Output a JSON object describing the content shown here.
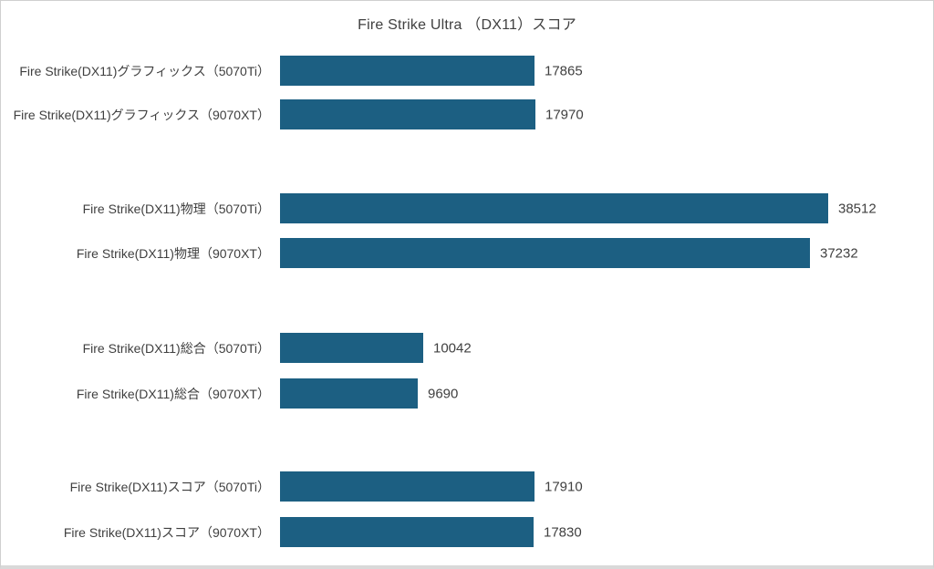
{
  "page": {
    "background_color": "#ffffff",
    "frame_border_color": "#cfcfcf",
    "bottom_strip_color": "#d9d9d9"
  },
  "chart_data": {
    "type": "bar",
    "orientation": "horizontal",
    "title": "Fire Strike Ultra （DX11）スコア",
    "categories": [
      "Fire Strike(DX11)グラフィックス（5070Ti）",
      "Fire Strike(DX11)グラフィックス（9070XT）",
      "Fire Strike(DX11)物理（5070Ti）",
      "Fire Strike(DX11)物理（9070XT）",
      "Fire Strike(DX11)総合（5070Ti）",
      "Fire Strike(DX11)総合（9070XT）",
      "Fire Strike(DX11)スコア（5070Ti）",
      "Fire Strike(DX11)スコア（9070XT）"
    ],
    "values": [
      17865,
      17970,
      38512,
      37232,
      10042,
      9690,
      17910,
      17830
    ],
    "data_labels": [
      "17865",
      "17970",
      "38512",
      "37232",
      "10042",
      "9690",
      "17910",
      "17830"
    ],
    "xlabel": "",
    "ylabel": "",
    "xlim": [
      0,
      40000
    ],
    "grid": false,
    "legend": "none",
    "axes_visible": false,
    "group_size": 2,
    "bar_color": "#1c5f82",
    "label_color": "#3f3f3f",
    "value_color": "#404040"
  }
}
